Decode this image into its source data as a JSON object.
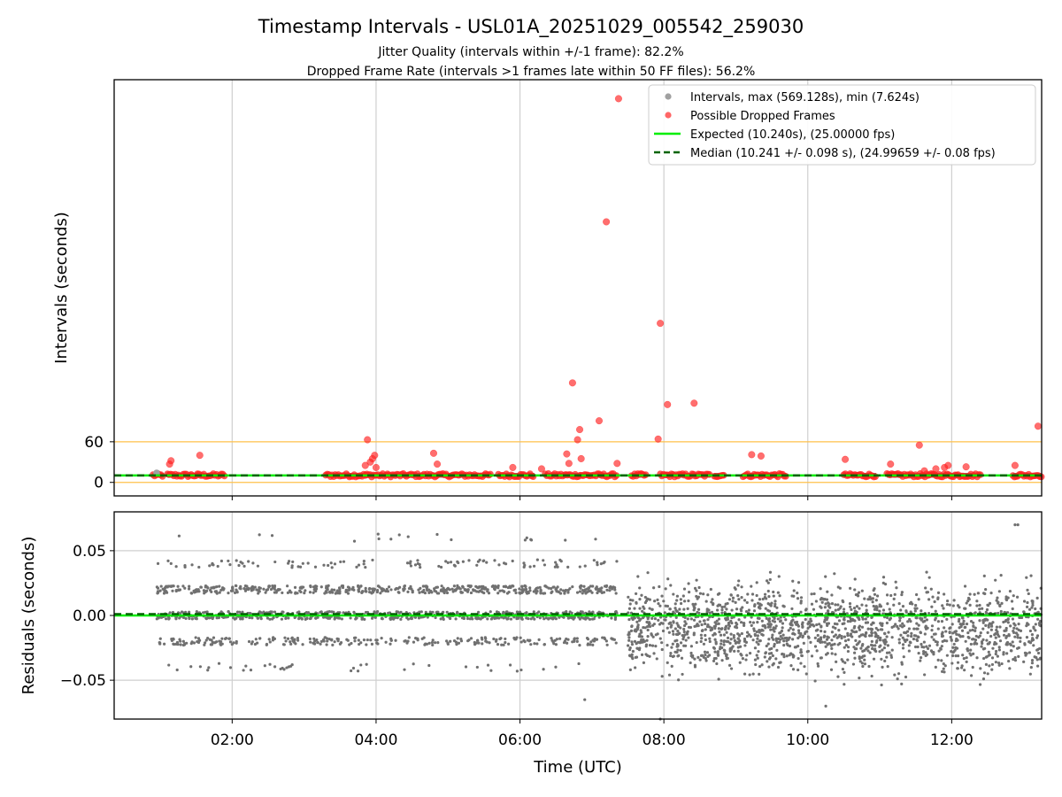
{
  "title": "Timestamp Intervals - USL01A_20251029_005542_259030",
  "subtitle1": "Jitter Quality (intervals within +/-1 frame): 82.2%",
  "subtitle2": "Dropped Frame Rate (intervals >1 frames late within 50 FF files): 56.2%",
  "colors": {
    "intervals": "#a0a0a0",
    "dropped": "#ff2020",
    "expected": "#00ee00",
    "median": "#006400",
    "threshold": "#ffc04a",
    "residuals": "#707070",
    "grid": "#cfcfcf"
  },
  "chart_data": [
    {
      "type": "scatter",
      "panel": "top",
      "ylabel": "Intervals (seconds)",
      "xlabel": "",
      "xlim_hours": [
        0.36,
        13.25
      ],
      "ylim": [
        -20,
        595
      ],
      "yticks": [
        0,
        60
      ],
      "ytick_labels": [
        "0",
        "60"
      ],
      "threshold_line": 60,
      "grid": "vertical only",
      "legend_position": "top-right",
      "legend": [
        {
          "label": "Intervals, max (569.128s), min (7.624s)",
          "kind": "marker",
          "color": "#a0a0a0"
        },
        {
          "label": "Possible Dropped Frames",
          "kind": "marker",
          "color": "#ff2020"
        },
        {
          "label": "Expected (10.240s), (25.00000 fps)",
          "kind": "line",
          "color": "#00ee00"
        },
        {
          "label": "Median (10.241 +/- 0.098 s), (24.99659 +/- 0.08 fps)",
          "kind": "dashed",
          "color": "#006400"
        }
      ],
      "expected": 10.24,
      "median": 10.241,
      "max_interval": 569.128,
      "min_interval": 7.624,
      "dense_segments_hours": [
        [
          0.9,
          1.05
        ],
        [
          1.1,
          1.9
        ],
        [
          3.3,
          3.85
        ],
        [
          3.85,
          5.6
        ],
        [
          5.7,
          6.2
        ],
        [
          6.35,
          7.35
        ],
        [
          7.55,
          7.75
        ],
        [
          7.95,
          8.65
        ],
        [
          8.7,
          8.85
        ],
        [
          9.1,
          9.7
        ],
        [
          10.5,
          10.95
        ],
        [
          11.1,
          12.4
        ],
        [
          12.85,
          13.25
        ]
      ],
      "dropped_outliers": [
        {
          "x": 1.13,
          "y": 27
        },
        {
          "x": 1.15,
          "y": 32
        },
        {
          "x": 1.55,
          "y": 40
        },
        {
          "x": 3.85,
          "y": 25
        },
        {
          "x": 3.88,
          "y": 63
        },
        {
          "x": 3.92,
          "y": 30
        },
        {
          "x": 3.95,
          "y": 35
        },
        {
          "x": 3.98,
          "y": 40
        },
        {
          "x": 4.0,
          "y": 22
        },
        {
          "x": 4.8,
          "y": 43
        },
        {
          "x": 4.85,
          "y": 27
        },
        {
          "x": 5.9,
          "y": 22
        },
        {
          "x": 6.3,
          "y": 20
        },
        {
          "x": 6.65,
          "y": 42
        },
        {
          "x": 6.68,
          "y": 28
        },
        {
          "x": 6.73,
          "y": 147
        },
        {
          "x": 6.8,
          "y": 63
        },
        {
          "x": 6.83,
          "y": 78
        },
        {
          "x": 6.85,
          "y": 35
        },
        {
          "x": 7.1,
          "y": 91
        },
        {
          "x": 7.2,
          "y": 385
        },
        {
          "x": 7.35,
          "y": 28
        },
        {
          "x": 7.37,
          "y": 567
        },
        {
          "x": 7.92,
          "y": 64
        },
        {
          "x": 7.95,
          "y": 235
        },
        {
          "x": 8.05,
          "y": 115
        },
        {
          "x": 8.42,
          "y": 117
        },
        {
          "x": 9.22,
          "y": 41
        },
        {
          "x": 9.35,
          "y": 39
        },
        {
          "x": 10.52,
          "y": 34
        },
        {
          "x": 11.15,
          "y": 27
        },
        {
          "x": 11.55,
          "y": 55
        },
        {
          "x": 11.62,
          "y": 17
        },
        {
          "x": 11.78,
          "y": 20
        },
        {
          "x": 11.9,
          "y": 22
        },
        {
          "x": 11.95,
          "y": 25
        },
        {
          "x": 12.2,
          "y": 23
        },
        {
          "x": 12.88,
          "y": 25
        },
        {
          "x": 13.2,
          "y": 83
        }
      ],
      "gray_outliers": [
        {
          "x": 0.95,
          "y": 14
        }
      ]
    },
    {
      "type": "scatter",
      "panel": "bottom",
      "ylabel": "Residuals (seconds)",
      "xlabel": "Time (UTC)",
      "xlim_hours": [
        0.36,
        13.25
      ],
      "ylim": [
        -0.08,
        0.08
      ],
      "yticks": [
        0.05,
        0.0,
        -0.05
      ],
      "ytick_labels": [
        "0.05",
        "0.00",
        "−0.05"
      ],
      "xticks_hours": [
        2,
        4,
        6,
        8,
        10,
        12
      ],
      "xtick_labels": [
        "02:00",
        "04:00",
        "06:00",
        "08:00",
        "10:00",
        "12:00"
      ],
      "grid": "both",
      "expected_residual": 0.0,
      "median_residual": 0.001,
      "phase1_hours": [
        0.95,
        7.35
      ],
      "phase1_levels": [
        0.0,
        0.02,
        -0.02,
        0.04,
        0.06,
        -0.04
      ],
      "phase2_hours": [
        7.5,
        13.25
      ],
      "phase2_range": [
        -0.06,
        0.04
      ],
      "notable_points": [
        {
          "x": 12.88,
          "y": 0.07
        },
        {
          "x": 12.92,
          "y": 0.07
        },
        {
          "x": 7.95,
          "y": -0.08
        },
        {
          "x": 6.9,
          "y": -0.065
        },
        {
          "x": 10.25,
          "y": -0.07
        }
      ]
    }
  ]
}
